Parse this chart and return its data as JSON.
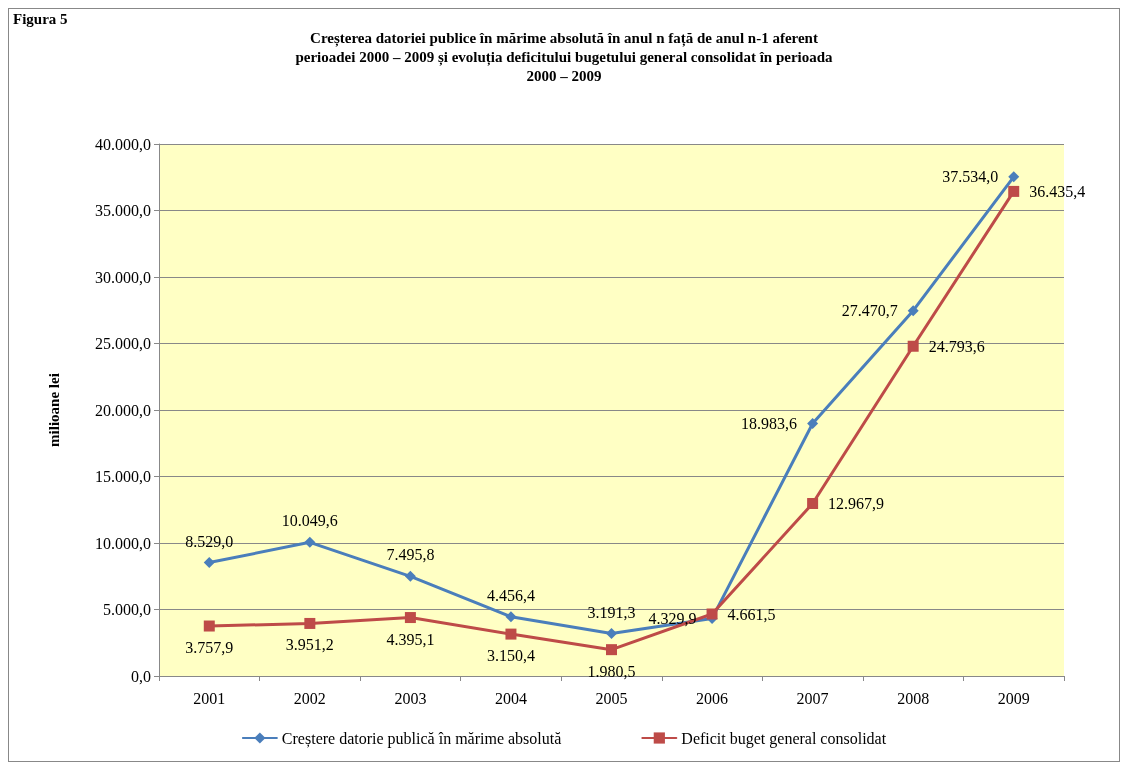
{
  "chart_data": {
    "type": "line",
    "title": "Creșterea datoriei publice în mărime absolută în anul n față de anul n-1 aferent\nperioadei 2000 – 2009 și evoluția deficitului bugetului general consolidat în perioada\n2000 – 2009",
    "ylabel": "milioane lei",
    "annotations": [
      "Figura 5"
    ],
    "categories": [
      "2001",
      "2002",
      "2003",
      "2004",
      "2005",
      "2006",
      "2007",
      "2008",
      "2009"
    ],
    "series": [
      {
        "name": "Creștere datorie publică în mărime absolută",
        "color": "#4a7ebb",
        "marker": "diamond",
        "values": [
          8529.0,
          10049.6,
          7495.8,
          4456.4,
          3191.3,
          4329.9,
          18983.6,
          27470.7,
          37534.0
        ],
        "value_labels": [
          "8.529,0",
          "10.049,6",
          "7.495,8",
          "4.456,4",
          "3.191,3",
          "4.329,9",
          "18.983,6",
          "27.470,7",
          "37.534,0"
        ]
      },
      {
        "name": "Deficit buget general consolidat",
        "color": "#be4b48",
        "marker": "square",
        "values": [
          3757.9,
          3951.2,
          4395.1,
          3150.4,
          1980.5,
          4661.5,
          12967.9,
          24793.6,
          36435.4
        ],
        "value_labels": [
          "3.757,9",
          "3.951,2",
          "4.395,1",
          "3.150,4",
          "1.980,5",
          "4.661,5",
          "12.967,9",
          "24.793,6",
          "36.435,4"
        ]
      }
    ],
    "ylim": [
      0,
      40000
    ],
    "yticks": [
      {
        "value": 0,
        "label": "0,0"
      },
      {
        "value": 5000,
        "label": "5.000,0"
      },
      {
        "value": 10000,
        "label": "10.000,0"
      },
      {
        "value": 15000,
        "label": "15.000,0"
      },
      {
        "value": 20000,
        "label": "20.000,0"
      },
      {
        "value": 25000,
        "label": "25.000,0"
      },
      {
        "value": 30000,
        "label": "30.000,0"
      },
      {
        "value": 35000,
        "label": "35.000,0"
      },
      {
        "value": 40000,
        "label": "40.000,0"
      }
    ],
    "grid": "y",
    "legend": "bottom",
    "line_style": "solid"
  }
}
